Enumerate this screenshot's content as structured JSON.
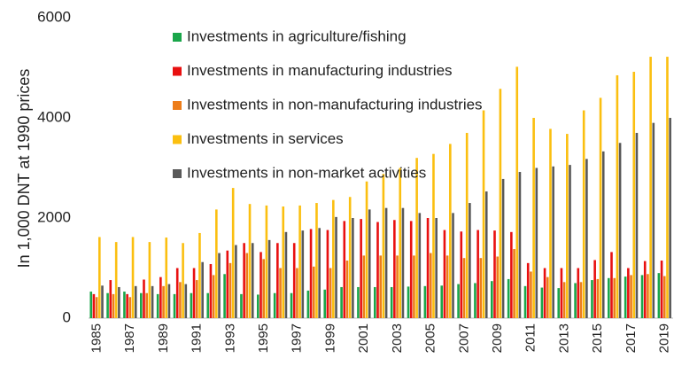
{
  "chart_data": {
    "type": "bar",
    "ylabel": "In 1,000 DNT at 1990 prices",
    "categories": [
      "1985",
      null,
      "1987",
      null,
      "1989",
      null,
      "1991",
      null,
      "1993",
      null,
      "1995",
      null,
      "1997",
      null,
      "1999",
      null,
      "2001",
      null,
      "2003",
      null,
      "2005",
      null,
      "2007",
      null,
      "2009",
      null,
      "2011",
      null,
      "2013",
      null,
      "2015",
      null,
      "2017",
      null,
      "2019"
    ],
    "series": [
      {
        "name": "Investments in agriculture/fishing",
        "color": "#1aa64a",
        "values": [
          530,
          500,
          530,
          500,
          480,
          480,
          500,
          500,
          880,
          480,
          470,
          500,
          500,
          550,
          570,
          620,
          620,
          620,
          620,
          630,
          640,
          650,
          680,
          700,
          740,
          780,
          640,
          610,
          600,
          700,
          760,
          800,
          830,
          860,
          900
        ]
      },
      {
        "name": "Investments in manufacturing industries",
        "color": "#e81010",
        "values": [
          480,
          760,
          480,
          770,
          820,
          1000,
          1000,
          1080,
          1350,
          1500,
          1320,
          1500,
          1500,
          1780,
          1760,
          1940,
          1980,
          1920,
          1960,
          1940,
          2000,
          1760,
          1730,
          1760,
          1750,
          1720,
          1100,
          1000,
          1000,
          1000,
          1160,
          1320,
          1000,
          1140,
          1150
        ]
      },
      {
        "name": "Investments in non-manufacturing industries",
        "color": "#ed7d1a",
        "values": [
          420,
          480,
          420,
          500,
          640,
          720,
          760,
          860,
          1100,
          1300,
          1180,
          1000,
          1000,
          1030,
          1000,
          1150,
          1250,
          1250,
          1250,
          1250,
          1300,
          1250,
          1200,
          1200,
          1230,
          1380,
          930,
          820,
          720,
          720,
          780,
          800,
          860,
          880,
          840
        ]
      },
      {
        "name": "Investments in services",
        "color": "#fbbf10",
        "values": [
          1620,
          1520,
          1620,
          1520,
          1610,
          1500,
          1700,
          2170,
          2600,
          2280,
          2250,
          2230,
          2250,
          2300,
          2360,
          2420,
          2730,
          2880,
          3000,
          3200,
          3280,
          3480,
          3700,
          4150,
          4580,
          5020,
          4000,
          3780,
          3680,
          4150,
          4400,
          4850,
          4920,
          5220,
          5220
        ]
      },
      {
        "name": "Investments in non-market activities",
        "color": "#595959",
        "values": [
          650,
          620,
          640,
          640,
          680,
          680,
          1120,
          1300,
          1460,
          1500,
          1560,
          1720,
          1750,
          1800,
          2020,
          2000,
          2170,
          2200,
          2200,
          2100,
          2000,
          2100,
          2300,
          2530,
          2780,
          2920,
          3000,
          3030,
          3060,
          3180,
          3330,
          3500,
          3700,
          3900,
          4000
        ]
      }
    ],
    "ylim": [
      0,
      6000
    ],
    "yticks": [
      0,
      2000,
      4000,
      6000
    ],
    "grid": false
  }
}
